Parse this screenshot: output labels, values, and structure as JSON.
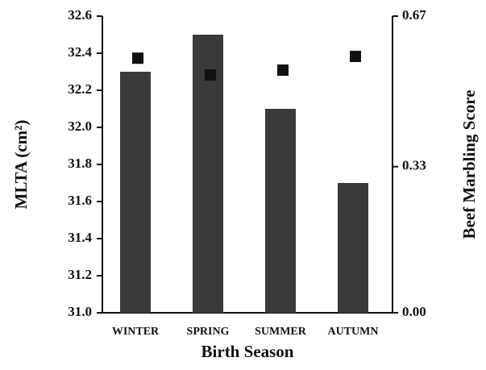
{
  "chart_data": {
    "type": "bar",
    "y_label": "MLTA (cm²)",
    "y2_label": "Beef Marbling Score",
    "x_label": "Birth Season",
    "categories": [
      "WINTER",
      "SPRING",
      "SUMMER",
      "AUTUMN"
    ],
    "series": [
      {
        "type": "bar",
        "color": "#3a3a3a",
        "values": [
          32.3,
          32.5,
          32.1,
          31.7
        ]
      },
      {
        "type": "scatter",
        "axis": "y2",
        "color": "#111111",
        "values": [
          0.575,
          0.537,
          0.548,
          0.579
        ]
      }
    ],
    "ylim": [
      31.0,
      32.6
    ],
    "yticks": [
      {
        "value": 31.0,
        "label": "31.0"
      },
      31.2,
      31.4,
      31.6,
      31.8,
      {
        "value": 32.0,
        "label": "32.0"
      },
      32.2,
      32.4,
      32.6
    ],
    "y2lim": [
      0,
      0.67
    ],
    "y2ticks": [
      {
        "value": 0,
        "label": "0.00"
      },
      0.33,
      0.67
    ]
  }
}
